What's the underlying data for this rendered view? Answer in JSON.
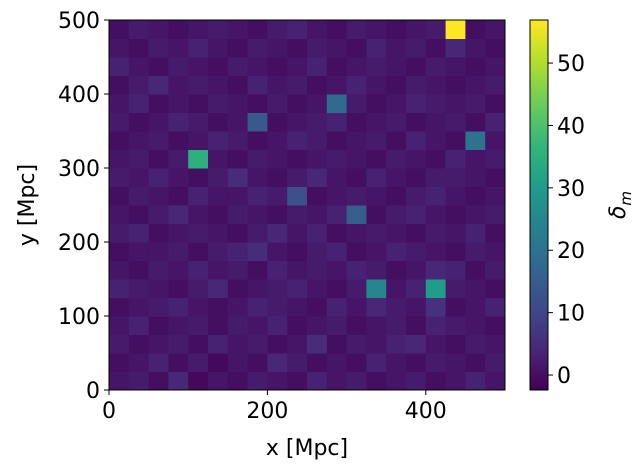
{
  "chart_data": {
    "type": "heatmap",
    "xlabel": "x [Mpc]",
    "ylabel": "y [Mpc]",
    "colorbar_label": {
      "symbol": "δ",
      "subscript": "m"
    },
    "xlim": [
      0,
      500
    ],
    "ylim": [
      0,
      500
    ],
    "xticks": [
      0,
      200,
      400
    ],
    "yticks": [
      0,
      100,
      200,
      300,
      400,
      500
    ],
    "clim": [
      -2.4,
      56.9
    ],
    "cticks": [
      0,
      10,
      20,
      30,
      40,
      50
    ],
    "colormap": "viridis",
    "z": [
      [
        1,
        2,
        0,
        4,
        -1,
        1,
        0,
        2,
        1,
        0,
        3,
        1,
        2,
        0,
        1,
        2,
        0,
        1,
        3,
        1
      ],
      [
        0,
        1,
        3,
        0,
        2,
        -1,
        1,
        0,
        4,
        2,
        0,
        1,
        0,
        3,
        1,
        0,
        2,
        1,
        0,
        2
      ],
      [
        2,
        0,
        1,
        2,
        0,
        3,
        1,
        2,
        0,
        1,
        5,
        0,
        2,
        1,
        3,
        4,
        1,
        0,
        2,
        1
      ],
      [
        1,
        3,
        0,
        1,
        2,
        0,
        2,
        1,
        3,
        0,
        1,
        2,
        0,
        1,
        2,
        0,
        3,
        2,
        1,
        0
      ],
      [
        0,
        1,
        2,
        3,
        1,
        0,
        1,
        3,
        2,
        1,
        0,
        3,
        1,
        4,
        2,
        1,
        6,
        0,
        1,
        3
      ],
      [
        3,
        2,
        1,
        0,
        2,
        4,
        0,
        1,
        2,
        3,
        1,
        0,
        2,
        25,
        1,
        3,
        30,
        2,
        1,
        0
      ],
      [
        1,
        0,
        2,
        1,
        3,
        1,
        2,
        0,
        3,
        1,
        2,
        1,
        3,
        2,
        0,
        1,
        4,
        3,
        0,
        2
      ],
      [
        0,
        1,
        1,
        2,
        0,
        2,
        3,
        5,
        1,
        0,
        2,
        3,
        0,
        1,
        3,
        2,
        1,
        0,
        2,
        1
      ],
      [
        2,
        3,
        0,
        1,
        2,
        1,
        0,
        2,
        4,
        1,
        3,
        0,
        1,
        2,
        1,
        0,
        2,
        1,
        3,
        0
      ],
      [
        1,
        0,
        2,
        4,
        1,
        0,
        2,
        1,
        0,
        2,
        1,
        3,
        15,
        0,
        2,
        3,
        1,
        0,
        1,
        2
      ],
      [
        0,
        2,
        1,
        0,
        3,
        1,
        1,
        3,
        2,
        12,
        0,
        1,
        2,
        1,
        0,
        2,
        3,
        1,
        0,
        1
      ],
      [
        2,
        1,
        3,
        1,
        0,
        2,
        5,
        1,
        0,
        2,
        4,
        1,
        0,
        3,
        1,
        0,
        2,
        2,
        1,
        0
      ],
      [
        1,
        2,
        0,
        2,
        35,
        1,
        0,
        2,
        1,
        0,
        1,
        2,
        1,
        0,
        2,
        1,
        0,
        3,
        1,
        2
      ],
      [
        0,
        1,
        2,
        0,
        1,
        3,
        2,
        0,
        1,
        3,
        2,
        0,
        1,
        2,
        0,
        3,
        1,
        0,
        20,
        1
      ],
      [
        2,
        0,
        1,
        3,
        2,
        0,
        1,
        14,
        0,
        1,
        2,
        3,
        0,
        1,
        2,
        0,
        1,
        2,
        0,
        3
      ],
      [
        1,
        3,
        0,
        1,
        0,
        2,
        1,
        0,
        2,
        0,
        1,
        18,
        2,
        0,
        1,
        3,
        2,
        1,
        2,
        0
      ],
      [
        0,
        2,
        4,
        1,
        2,
        1,
        0,
        3,
        1,
        2,
        0,
        1,
        3,
        1,
        0,
        2,
        1,
        0,
        1,
        2
      ],
      [
        3,
        1,
        0,
        2,
        1,
        0,
        2,
        1,
        0,
        1,
        3,
        0,
        1,
        2,
        1,
        0,
        2,
        1,
        0,
        1
      ],
      [
        1,
        0,
        2,
        1,
        3,
        1,
        0,
        2,
        1,
        0,
        2,
        1,
        0,
        3,
        1,
        2,
        0,
        4,
        1,
        0
      ],
      [
        0,
        2,
        1,
        0,
        1,
        2,
        1,
        0,
        2,
        3,
        1,
        0,
        2,
        1,
        0,
        1,
        2,
        57,
        0,
        1
      ]
    ]
  }
}
